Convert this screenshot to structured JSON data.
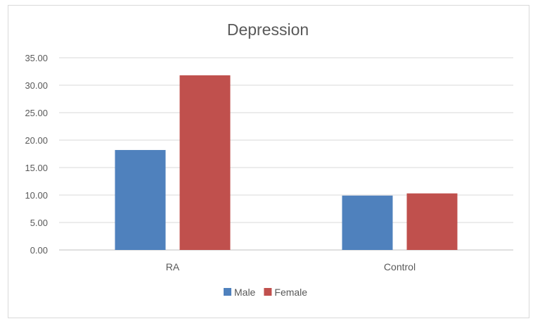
{
  "chart_data": {
    "type": "bar",
    "title": "Depression",
    "xlabel": "",
    "ylabel": "",
    "categories": [
      "RA",
      "Control"
    ],
    "series": [
      {
        "name": "Male",
        "values": [
          18.2,
          9.9
        ],
        "color": "#4f81bd"
      },
      {
        "name": "Female",
        "values": [
          31.8,
          10.3
        ],
        "color": "#c0504d"
      }
    ],
    "ylim": [
      0,
      35
    ],
    "yticks": [
      "0.00",
      "5.00",
      "10.00",
      "15.00",
      "20.00",
      "25.00",
      "30.00",
      "35.00"
    ],
    "grid": true,
    "legend": "bottom-center"
  }
}
